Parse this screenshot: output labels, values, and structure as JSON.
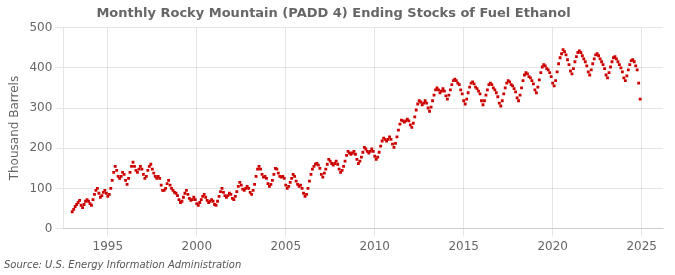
{
  "chart_data": {
    "type": "scatter",
    "title": "Monthly Rocky Mountain (PADD 4) Ending Stocks of Fuel Ethanol",
    "ylabel": "Thousand Barrels",
    "annotations": [
      "Source: U.S. Energy Information Administration"
    ],
    "color": "#cc0000",
    "marker": "square",
    "grid": true,
    "xlim": [
      1992.5,
      2026.2
    ],
    "ylim": [
      0,
      500
    ],
    "xticks": [
      1995,
      2000,
      2005,
      2010,
      2015,
      2020,
      2025
    ],
    "yticks": [
      0,
      100,
      200,
      300,
      400,
      500
    ],
    "x": [
      1993.0,
      1993.083,
      1993.167,
      1993.25,
      1993.333,
      1993.417,
      1993.5,
      1993.583,
      1993.667,
      1993.75,
      1993.833,
      1993.917,
      1994.0,
      1994.083,
      1994.167,
      1994.25,
      1994.333,
      1994.417,
      1994.5,
      1994.583,
      1994.667,
      1994.75,
      1994.833,
      1994.917,
      1995.0,
      1995.083,
      1995.167,
      1995.25,
      1995.333,
      1995.417,
      1995.5,
      1995.583,
      1995.667,
      1995.75,
      1995.833,
      1995.917,
      1996.0,
      1996.083,
      1996.167,
      1996.25,
      1996.333,
      1996.417,
      1996.5,
      1996.583,
      1996.667,
      1996.75,
      1996.833,
      1996.917,
      1997.0,
      1997.083,
      1997.167,
      1997.25,
      1997.333,
      1997.417,
      1997.5,
      1997.583,
      1997.667,
      1997.75,
      1997.833,
      1997.917,
      1998.0,
      1998.083,
      1998.167,
      1998.25,
      1998.333,
      1998.417,
      1998.5,
      1998.583,
      1998.667,
      1998.75,
      1998.833,
      1998.917,
      1999.0,
      1999.083,
      1999.167,
      1999.25,
      1999.333,
      1999.417,
      1999.5,
      1999.583,
      1999.667,
      1999.75,
      1999.833,
      1999.917,
      2000.0,
      2000.083,
      2000.167,
      2000.25,
      2000.333,
      2000.417,
      2000.5,
      2000.583,
      2000.667,
      2000.75,
      2000.833,
      2000.917,
      2001.0,
      2001.083,
      2001.167,
      2001.25,
      2001.333,
      2001.417,
      2001.5,
      2001.583,
      2001.667,
      2001.75,
      2001.833,
      2001.917,
      2002.0,
      2002.083,
      2002.167,
      2002.25,
      2002.333,
      2002.417,
      2002.5,
      2002.583,
      2002.667,
      2002.75,
      2002.833,
      2002.917,
      2003.0,
      2003.083,
      2003.167,
      2003.25,
      2003.333,
      2003.417,
      2003.5,
      2003.583,
      2003.667,
      2003.75,
      2003.833,
      2003.917,
      2004.0,
      2004.083,
      2004.167,
      2004.25,
      2004.333,
      2004.417,
      2004.5,
      2004.583,
      2004.667,
      2004.75,
      2004.833,
      2004.917,
      2005.0,
      2005.083,
      2005.167,
      2005.25,
      2005.333,
      2005.417,
      2005.5,
      2005.583,
      2005.667,
      2005.75,
      2005.833,
      2005.917,
      2006.0,
      2006.083,
      2006.167,
      2006.25,
      2006.333,
      2006.417,
      2006.5,
      2006.583,
      2006.667,
      2006.75,
      2006.833,
      2006.917,
      2007.0,
      2007.083,
      2007.167,
      2007.25,
      2007.333,
      2007.417,
      2007.5,
      2007.583,
      2007.667,
      2007.75,
      2007.833,
      2007.917,
      2008.0,
      2008.083,
      2008.167,
      2008.25,
      2008.333,
      2008.417,
      2008.5,
      2008.583,
      2008.667,
      2008.75,
      2008.833,
      2008.917,
      2009.0,
      2009.083,
      2009.167,
      2009.25,
      2009.333,
      2009.417,
      2009.5,
      2009.583,
      2009.667,
      2009.75,
      2009.833,
      2009.917,
      2010.0,
      2010.083,
      2010.167,
      2010.25,
      2010.333,
      2010.417,
      2010.5,
      2010.583,
      2010.667,
      2010.75,
      2010.833,
      2010.917,
      2011.0,
      2011.083,
      2011.167,
      2011.25,
      2011.333,
      2011.417,
      2011.5,
      2011.583,
      2011.667,
      2011.75,
      2011.833,
      2011.917,
      2012.0,
      2012.083,
      2012.167,
      2012.25,
      2012.333,
      2012.417,
      2012.5,
      2012.583,
      2012.667,
      2012.75,
      2012.833,
      2012.917,
      2013.0,
      2013.083,
      2013.167,
      2013.25,
      2013.333,
      2013.417,
      2013.5,
      2013.583,
      2013.667,
      2013.75,
      2013.833,
      2013.917,
      2014.0,
      2014.083,
      2014.167,
      2014.25,
      2014.333,
      2014.417,
      2014.5,
      2014.583,
      2014.667,
      2014.75,
      2014.833,
      2014.917,
      2015.0,
      2015.083,
      2015.167,
      2015.25,
      2015.333,
      2015.417,
      2015.5,
      2015.583,
      2015.667,
      2015.75,
      2015.833,
      2015.917,
      2016.0,
      2016.083,
      2016.167,
      2016.25,
      2016.333,
      2016.417,
      2016.5,
      2016.583,
      2016.667,
      2016.75,
      2016.833,
      2016.917,
      2017.0,
      2017.083,
      2017.167,
      2017.25,
      2017.333,
      2017.417,
      2017.5,
      2017.583,
      2017.667,
      2017.75,
      2017.833,
      2017.917,
      2018.0,
      2018.083,
      2018.167,
      2018.25,
      2018.333,
      2018.417,
      2018.5,
      2018.583,
      2018.667,
      2018.75,
      2018.833,
      2018.917,
      2019.0,
      2019.083,
      2019.167,
      2019.25,
      2019.333,
      2019.417,
      2019.5,
      2019.583,
      2019.667,
      2019.75,
      2019.833,
      2019.917,
      2020.0,
      2020.083,
      2020.167,
      2020.25,
      2020.333,
      2020.417,
      2020.5,
      2020.583,
      2020.667,
      2020.75,
      2020.833,
      2020.917,
      2021.0,
      2021.083,
      2021.167,
      2021.25,
      2021.333,
      2021.417,
      2021.5,
      2021.583,
      2021.667,
      2021.75,
      2021.833,
      2021.917,
      2022.0,
      2022.083,
      2022.167,
      2022.25,
      2022.333,
      2022.417,
      2022.5,
      2022.583,
      2022.667,
      2022.75,
      2022.833,
      2022.917,
      2023.0,
      2023.083,
      2023.167,
      2023.25,
      2023.333,
      2023.417,
      2023.5,
      2023.583,
      2023.667,
      2023.75,
      2023.833,
      2023.917,
      2024.0,
      2024.083,
      2024.167,
      2024.25,
      2024.333,
      2024.417,
      2024.5,
      2024.583,
      2024.667,
      2024.75,
      2024.833,
      2024.917
    ],
    "values": [
      42,
      48,
      55,
      60,
      65,
      70,
      58,
      52,
      60,
      68,
      72,
      68,
      62,
      58,
      72,
      85,
      95,
      100,
      88,
      78,
      82,
      90,
      95,
      88,
      80,
      85,
      100,
      120,
      140,
      155,
      145,
      130,
      125,
      130,
      140,
      135,
      120,
      110,
      125,
      140,
      155,
      165,
      155,
      145,
      140,
      148,
      155,
      148,
      135,
      125,
      130,
      145,
      155,
      160,
      148,
      138,
      130,
      125,
      130,
      125,
      108,
      95,
      95,
      100,
      112,
      120,
      108,
      100,
      95,
      90,
      88,
      82,
      72,
      65,
      68,
      78,
      88,
      95,
      85,
      75,
      70,
      72,
      78,
      72,
      62,
      58,
      65,
      72,
      80,
      85,
      78,
      70,
      65,
      68,
      72,
      68,
      60,
      58,
      68,
      80,
      92,
      100,
      90,
      82,
      78,
      82,
      88,
      85,
      75,
      72,
      80,
      92,
      105,
      115,
      108,
      98,
      95,
      100,
      105,
      100,
      90,
      85,
      95,
      110,
      130,
      148,
      155,
      148,
      135,
      128,
      130,
      125,
      112,
      105,
      110,
      120,
      135,
      150,
      148,
      138,
      130,
      128,
      130,
      125,
      108,
      100,
      105,
      115,
      125,
      135,
      130,
      118,
      110,
      105,
      108,
      100,
      88,
      80,
      85,
      100,
      118,
      135,
      148,
      155,
      160,
      162,
      158,
      150,
      135,
      128,
      138,
      148,
      160,
      172,
      168,
      162,
      158,
      162,
      168,
      160,
      148,
      140,
      145,
      155,
      168,
      182,
      192,
      188,
      185,
      188,
      192,
      185,
      172,
      162,
      168,
      178,
      190,
      202,
      198,
      192,
      188,
      192,
      198,
      192,
      180,
      172,
      178,
      190,
      205,
      218,
      225,
      222,
      218,
      222,
      228,
      222,
      210,
      202,
      212,
      228,
      245,
      260,
      270,
      268,
      265,
      268,
      272,
      268,
      258,
      252,
      262,
      278,
      295,
      310,
      318,
      315,
      308,
      312,
      318,
      312,
      300,
      292,
      302,
      318,
      332,
      345,
      350,
      345,
      338,
      342,
      348,
      342,
      330,
      322,
      332,
      345,
      358,
      368,
      372,
      368,
      362,
      358,
      345,
      335,
      318,
      310,
      322,
      338,
      352,
      362,
      365,
      360,
      352,
      348,
      342,
      335,
      318,
      308,
      318,
      332,
      345,
      358,
      362,
      358,
      350,
      345,
      338,
      328,
      312,
      305,
      318,
      335,
      350,
      362,
      368,
      365,
      358,
      355,
      348,
      340,
      325,
      318,
      332,
      350,
      368,
      382,
      388,
      385,
      378,
      375,
      368,
      360,
      345,
      338,
      352,
      370,
      388,
      402,
      408,
      405,
      398,
      395,
      388,
      378,
      362,
      355,
      368,
      390,
      410,
      425,
      435,
      445,
      440,
      432,
      420,
      408,
      392,
      385,
      398,
      415,
      428,
      438,
      442,
      438,
      430,
      422,
      415,
      405,
      390,
      382,
      395,
      410,
      422,
      432,
      435,
      430,
      422,
      415,
      408,
      398,
      382,
      375,
      388,
      402,
      415,
      425,
      428,
      422,
      415,
      408,
      400,
      390,
      375,
      368,
      380,
      395,
      408,
      418,
      420,
      415,
      405,
      395,
      362,
      322
    ]
  }
}
